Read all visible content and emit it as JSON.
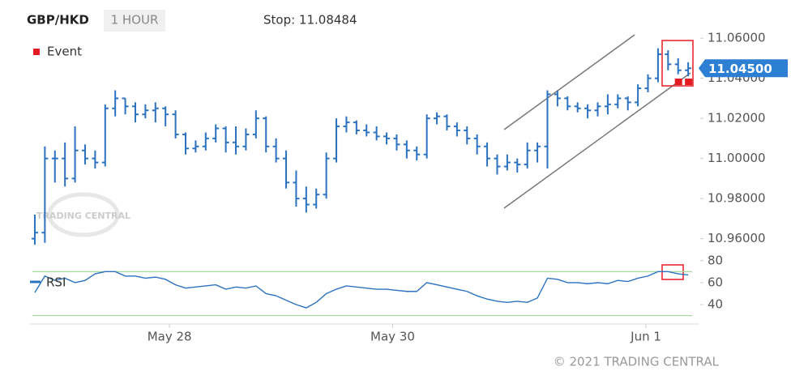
{
  "header": {
    "symbol": "GBP/HKD",
    "interval": "1 HOUR",
    "stop": "Stop: 11.08484",
    "watermark": "TRADING CENTRAL",
    "copyright": "© 2021 TRADING CENTRAL"
  },
  "chart_data": [
    {
      "type": "ohlc",
      "color": "#2b72c0",
      "x": [
        0,
        1,
        2,
        3,
        4,
        5,
        6,
        7,
        8,
        9,
        10,
        11,
        12,
        13,
        14,
        15,
        16,
        17,
        18,
        19,
        20,
        21,
        22,
        23,
        24,
        25,
        26,
        27,
        28,
        29,
        30,
        31,
        32,
        33,
        34,
        35,
        36,
        37,
        38,
        39,
        40,
        41,
        42,
        43,
        44,
        45,
        46,
        47,
        48,
        49,
        50,
        51,
        52,
        53,
        54,
        55,
        56,
        57,
        58,
        59,
        60,
        61,
        62,
        63,
        64,
        65
      ],
      "open": [
        10.96,
        10.963,
        11.0,
        11.0,
        10.99,
        11.004,
        11.0,
        10.998,
        11.025,
        11.03,
        11.026,
        11.022,
        11.024,
        11.025,
        11.022,
        11.012,
        11.005,
        11.006,
        11.01,
        11.015,
        11.008,
        11.006,
        11.012,
        11.02,
        11.006,
        11.0,
        10.988,
        10.98,
        10.977,
        10.982,
        11.0,
        11.016,
        11.018,
        11.014,
        11.013,
        11.011,
        11.01,
        11.007,
        11.004,
        11.002,
        11.02,
        11.021,
        11.016,
        11.014,
        11.01,
        11.006,
        11.0,
        10.996,
        10.998,
        10.997,
        11.004,
        11.006,
        11.032,
        11.03,
        11.026,
        11.025,
        11.024,
        11.026,
        11.027,
        11.03,
        11.028,
        11.035,
        11.04,
        11.052,
        11.047,
        11.044
      ],
      "high": [
        10.972,
        11.006,
        11.004,
        11.008,
        11.016,
        11.007,
        11.004,
        11.027,
        11.034,
        11.03,
        11.028,
        11.027,
        11.028,
        11.026,
        11.024,
        11.013,
        11.009,
        11.013,
        11.017,
        11.016,
        11.016,
        11.015,
        11.024,
        11.021,
        11.01,
        11.004,
        10.994,
        10.986,
        10.985,
        11.003,
        11.02,
        11.021,
        11.019,
        11.017,
        11.016,
        11.013,
        11.012,
        11.009,
        11.006,
        11.022,
        11.023,
        11.022,
        11.018,
        11.016,
        11.012,
        11.008,
        11.002,
        11.002,
        11.0,
        11.008,
        11.008,
        11.034,
        11.034,
        11.031,
        11.028,
        11.027,
        11.028,
        11.032,
        11.032,
        11.031,
        11.037,
        11.042,
        11.055,
        11.054,
        11.05,
        11.048
      ],
      "low": [
        10.957,
        10.958,
        10.988,
        10.986,
        10.988,
        10.997,
        10.995,
        10.996,
        11.021,
        11.022,
        11.018,
        11.02,
        11.018,
        11.016,
        11.01,
        11.002,
        11.003,
        11.004,
        11.008,
        11.003,
        11.002,
        11.004,
        11.01,
        11.003,
        10.998,
        10.985,
        10.976,
        10.973,
        10.975,
        10.98,
        10.998,
        11.013,
        11.012,
        11.011,
        11.009,
        11.007,
        11.004,
        11.0,
        10.999,
        11.0,
        11.017,
        11.014,
        11.011,
        11.007,
        11.002,
        10.996,
        10.992,
        10.994,
        10.993,
        10.995,
        10.998,
        10.995,
        11.026,
        11.024,
        11.023,
        11.02,
        11.021,
        11.022,
        11.025,
        11.024,
        11.026,
        11.033,
        11.038,
        11.044,
        11.042,
        11.041
      ],
      "close": [
        10.963,
        11.0,
        11.0,
        10.99,
        11.004,
        11.0,
        10.998,
        11.025,
        11.03,
        11.026,
        11.022,
        11.024,
        11.025,
        11.022,
        11.012,
        11.005,
        11.006,
        11.01,
        11.015,
        11.008,
        11.006,
        11.012,
        11.02,
        11.006,
        11.0,
        10.988,
        10.98,
        10.977,
        10.982,
        11.0,
        11.016,
        11.018,
        11.014,
        11.013,
        11.011,
        11.01,
        11.007,
        11.004,
        11.002,
        11.02,
        11.021,
        11.016,
        11.014,
        11.01,
        11.006,
        11.0,
        10.996,
        10.998,
        10.997,
        11.004,
        11.006,
        11.032,
        11.03,
        11.026,
        11.025,
        11.024,
        11.026,
        11.027,
        11.03,
        11.028,
        11.035,
        11.04,
        11.052,
        11.047,
        11.044,
        11.045
      ],
      "last_price_label": "11.04500",
      "events": {
        "name": "Event",
        "color": "#e31b23",
        "x": [
          64,
          65
        ]
      },
      "xlim": [
        -0.4,
        66.2
      ],
      "xticks": [
        {
          "value": 13.4,
          "label": "May 28"
        },
        {
          "value": 35.6,
          "label": "May 30"
        },
        {
          "value": 60.8,
          "label": "Jun 1"
        }
      ],
      "ylim": [
        10.955,
        11.073
      ],
      "yticks": [
        {
          "value": 10.96,
          "label": "10.96000"
        },
        {
          "value": 10.98,
          "label": "10.98000"
        },
        {
          "value": 11.0,
          "label": "11.00000"
        },
        {
          "value": 11.02,
          "label": "11.02000"
        },
        {
          "value": 11.04,
          "label": "11.04000"
        },
        {
          "value": 11.06,
          "label": "11.06000"
        }
      ]
    },
    {
      "type": "line",
      "series": [
        {
          "name": "RSI",
          "color": "#2b72c0",
          "values": [
            51,
            66,
            62,
            64,
            60,
            62,
            68,
            70,
            70,
            66,
            66,
            64,
            65,
            63,
            58,
            55,
            56,
            57,
            58,
            54,
            56,
            55,
            57,
            50,
            48,
            44,
            40,
            37,
            42,
            50,
            54,
            57,
            56,
            55,
            54,
            54,
            53,
            52,
            52,
            60,
            58,
            56,
            54,
            52,
            48,
            45,
            43,
            42,
            43,
            42,
            46,
            64,
            63,
            60,
            60,
            59,
            60,
            59,
            62,
            61,
            64,
            66,
            70,
            70,
            68,
            67
          ]
        }
      ],
      "levels": [
        70,
        30
      ],
      "level_color": "#a6d8a0",
      "ylim": [
        26,
        85
      ],
      "yticks": [
        40,
        60,
        80
      ]
    }
  ]
}
